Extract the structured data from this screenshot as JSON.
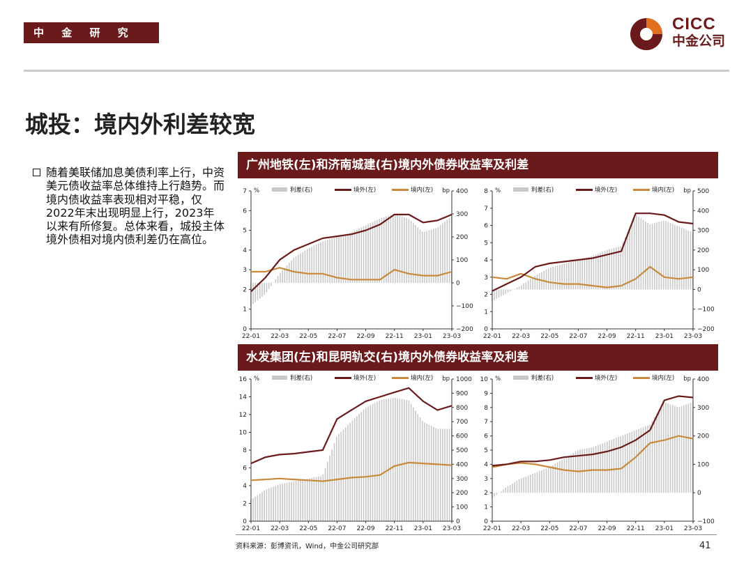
{
  "header": {
    "dept": "中 金 研 究 部",
    "logo_name": "CICC",
    "logo_sub": "中金公司"
  },
  "page_title": "城投：境内外利差较宽",
  "bullet_text": "随着美联储加息美债利率上行，中资美元债收益率总体维持上行趋势。而境内债收益率表现相对平稳，仅2022年末出现明显上行，2023年以来有所修复。总体来看，城投主体境外债相对境内债利差仍在高位。",
  "panel_titles": [
    "广州地铁(左)和济南城建(右)境内外债券收益率及利差",
    "水发集团(左)和昆明轨交(右)境内外债券收益率及利差"
  ],
  "legend": {
    "spread": "利差(右)",
    "offshore": "境外(左)",
    "onshore": "境内(左)",
    "pct": "%",
    "bp": "bp"
  },
  "colors": {
    "spread": "#c8c8c8",
    "offshore": "#6b1a1b",
    "onshore": "#c8893a",
    "brand": "#6b1a1b"
  },
  "source": "资料来源：彭博资讯，Wind，中金公司研究部",
  "page_number": "41",
  "chart_data": [
    {
      "type": "line",
      "x_ticks": [
        "22-01",
        "22-03",
        "22-05",
        "22-07",
        "22-09",
        "22-11",
        "23-01",
        "23-03"
      ],
      "x": [
        0,
        1,
        2,
        3,
        4,
        5,
        6,
        7,
        8,
        9,
        10,
        11,
        12,
        13,
        14
      ],
      "series": [
        {
          "name": "境外(左)",
          "values": [
            1.9,
            2.6,
            3.5,
            4.0,
            4.3,
            4.6,
            4.7,
            4.8,
            5.0,
            5.3,
            5.8,
            5.8,
            5.4,
            5.5,
            5.8
          ]
        },
        {
          "name": "境内(左)",
          "values": [
            2.9,
            2.9,
            3.1,
            2.9,
            2.8,
            2.8,
            2.6,
            2.5,
            2.5,
            2.5,
            3.0,
            2.8,
            2.7,
            2.7,
            2.9
          ]
        },
        {
          "name": "利差(右)",
          "values": [
            -100,
            -50,
            40,
            110,
            150,
            180,
            200,
            220,
            250,
            280,
            300,
            280,
            220,
            240,
            290
          ]
        }
      ],
      "ylim_left": [
        0,
        7
      ],
      "left_ticks": [
        0,
        1,
        2,
        3,
        4,
        5,
        6,
        7
      ],
      "ylim_right": [
        -200,
        400
      ],
      "right_ticks": [
        -200,
        -100,
        0,
        100,
        200,
        300,
        400
      ]
    },
    {
      "type": "line",
      "x_ticks": [
        "22-01",
        "22-03",
        "22-05",
        "22-07",
        "22-09",
        "22-11",
        "23-01",
        "23-03"
      ],
      "x": [
        0,
        1,
        2,
        3,
        4,
        5,
        6,
        7,
        8,
        9,
        10,
        11,
        12,
        13,
        14
      ],
      "series": [
        {
          "name": "境外(左)",
          "values": [
            2.2,
            2.6,
            3.0,
            3.6,
            3.8,
            3.9,
            4.0,
            4.1,
            4.3,
            4.5,
            6.7,
            6.7,
            6.6,
            6.2,
            6.1
          ]
        },
        {
          "name": "境内(左)",
          "values": [
            3.0,
            2.9,
            3.2,
            2.9,
            2.7,
            2.6,
            2.6,
            2.5,
            2.4,
            2.5,
            2.9,
            3.6,
            3.0,
            2.9,
            3.0
          ]
        },
        {
          "name": "利差(右)",
          "values": [
            -60,
            -20,
            20,
            70,
            110,
            130,
            150,
            170,
            200,
            220,
            380,
            330,
            350,
            320,
            290
          ]
        }
      ],
      "ylim_left": [
        0,
        8
      ],
      "left_ticks": [
        0,
        1,
        2,
        3,
        4,
        5,
        6,
        7,
        8
      ],
      "ylim_right": [
        -200,
        500
      ],
      "right_ticks": [
        -200,
        -100,
        0,
        100,
        200,
        300,
        400,
        500
      ]
    },
    {
      "type": "line",
      "x_ticks": [
        "22-01",
        "22-03",
        "22-05",
        "22-07",
        "22-09",
        "22-11",
        "23-01",
        "23-03"
      ],
      "x": [
        0,
        1,
        2,
        3,
        4,
        5,
        6,
        7,
        8,
        9,
        10,
        11,
        12,
        13,
        14
      ],
      "series": [
        {
          "name": "境外(左)",
          "values": [
            6.5,
            7.2,
            7.5,
            7.6,
            7.8,
            8.0,
            11.5,
            12.5,
            13.5,
            14.0,
            14.5,
            15.0,
            13.5,
            12.5,
            13.0
          ]
        },
        {
          "name": "境内(左)",
          "values": [
            4.6,
            4.7,
            4.8,
            4.7,
            4.6,
            4.5,
            4.7,
            4.9,
            5.0,
            5.2,
            6.2,
            6.6,
            6.5,
            6.4,
            6.3
          ]
        },
        {
          "name": "利差(右)",
          "values": [
            150,
            220,
            260,
            280,
            300,
            320,
            600,
            700,
            800,
            850,
            870,
            850,
            700,
            650,
            650
          ]
        }
      ],
      "ylim_left": [
        0,
        16
      ],
      "left_ticks": [
        0,
        2,
        4,
        6,
        8,
        10,
        12,
        14,
        16
      ],
      "ylim_right": [
        0,
        1000
      ],
      "right_ticks": [
        0,
        100,
        200,
        300,
        400,
        500,
        600,
        700,
        800,
        900,
        1000
      ]
    },
    {
      "type": "line",
      "x_ticks": [
        "22-01",
        "22-03",
        "22-05",
        "22-07",
        "22-09",
        "22-11",
        "23-01",
        "23-03"
      ],
      "x": [
        0,
        1,
        2,
        3,
        4,
        5,
        6,
        7,
        8,
        9,
        10,
        11,
        12,
        13,
        14
      ],
      "series": [
        {
          "name": "境外(左)",
          "values": [
            3.9,
            4.0,
            4.2,
            4.2,
            4.3,
            4.5,
            4.6,
            4.7,
            4.9,
            5.2,
            5.7,
            6.4,
            8.5,
            8.8,
            8.7
          ]
        },
        {
          "name": "境内(左)",
          "values": [
            3.8,
            4.0,
            4.1,
            4.0,
            3.8,
            3.6,
            3.5,
            3.6,
            3.6,
            3.7,
            4.5,
            5.5,
            5.7,
            6.0,
            5.8
          ]
        },
        {
          "name": "利差(右)",
          "values": [
            -20,
            20,
            50,
            70,
            90,
            120,
            150,
            160,
            180,
            200,
            220,
            240,
            320,
            300,
            320
          ]
        }
      ],
      "ylim_left": [
        0,
        10
      ],
      "left_ticks": [
        0,
        1,
        2,
        3,
        4,
        5,
        6,
        7,
        8,
        9,
        10
      ],
      "ylim_right": [
        -100,
        400
      ],
      "right_ticks": [
        -100,
        0,
        100,
        200,
        300,
        400
      ]
    }
  ]
}
